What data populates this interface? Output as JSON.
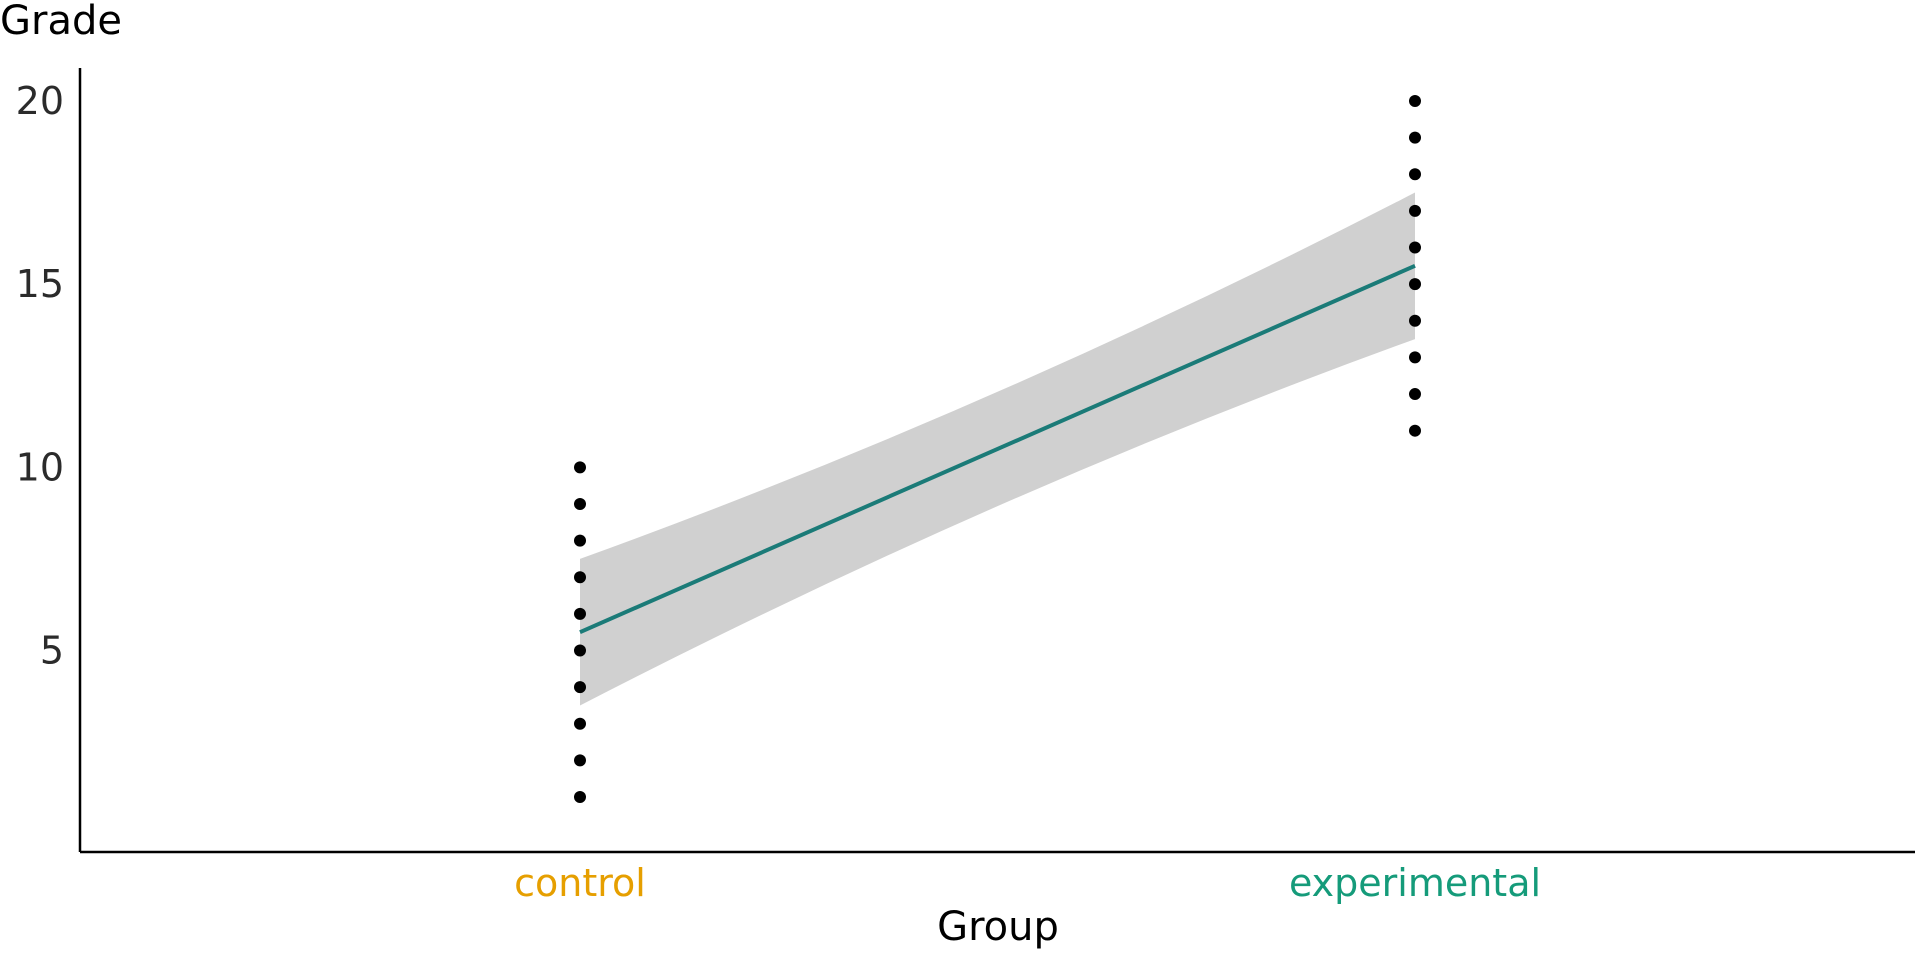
{
  "chart_data": {
    "type": "scatter",
    "title": "",
    "xlabel": "Group",
    "ylabel": "Grade",
    "categories": [
      "control",
      "experimental"
    ],
    "category_colors": [
      "#E69F00",
      "#159B7A"
    ],
    "ylim": [
      -0.5,
      20.9
    ],
    "yticks": [
      5,
      10,
      15,
      20
    ],
    "grid": false,
    "series": [
      {
        "category": "control",
        "values": [
          1,
          2,
          3,
          4,
          5,
          6,
          7,
          8,
          9,
          10
        ]
      },
      {
        "category": "experimental",
        "values": [
          11,
          12,
          13,
          14,
          15,
          16,
          17,
          18,
          19,
          20
        ]
      }
    ],
    "fit_line": {
      "color": "#1B7B78",
      "y_at_control": 5.5,
      "y_at_experimental": 15.5
    },
    "confidence_band": {
      "color": "#D0D0D0",
      "upper_at_control": 7.5,
      "lower_at_control": 3.5,
      "upper_at_experimental": 17.5,
      "lower_at_experimental": 13.5
    },
    "point_color": "#000000"
  }
}
